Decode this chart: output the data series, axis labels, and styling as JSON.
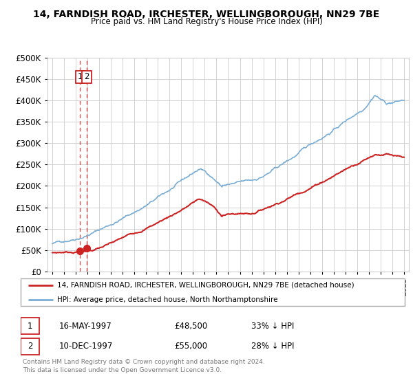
{
  "title": "14, FARNDISH ROAD, IRCHESTER, WELLINGBOROUGH, NN29 7BE",
  "subtitle": "Price paid vs. HM Land Registry's House Price Index (HPI)",
  "legend_line1": "14, FARNDISH ROAD, IRCHESTER, WELLINGBOROUGH, NN29 7BE (detached house)",
  "legend_line2": "HPI: Average price, detached house, North Northamptonshire",
  "transaction1_date": "16-MAY-1997",
  "transaction1_price": "£48,500",
  "transaction1_hpi": "33% ↓ HPI",
  "transaction2_date": "10-DEC-1997",
  "transaction2_price": "£55,000",
  "transaction2_hpi": "28% ↓ HPI",
  "footer": "Contains HM Land Registry data © Crown copyright and database right 2024.\nThis data is licensed under the Open Government Licence v3.0.",
  "price_color": "#cc2222",
  "hpi_color": "#7aadd4",
  "vline_color": "#cc2222",
  "ylim": [
    0,
    500000
  ],
  "yticks": [
    0,
    50000,
    100000,
    150000,
    200000,
    250000,
    300000,
    350000,
    400000,
    450000,
    500000
  ],
  "xlim_start": 1994.6,
  "xlim_end": 2025.4,
  "transaction1_x": 1997.37,
  "transaction2_x": 1997.94,
  "transaction1_y": 48500,
  "transaction2_y": 55000
}
